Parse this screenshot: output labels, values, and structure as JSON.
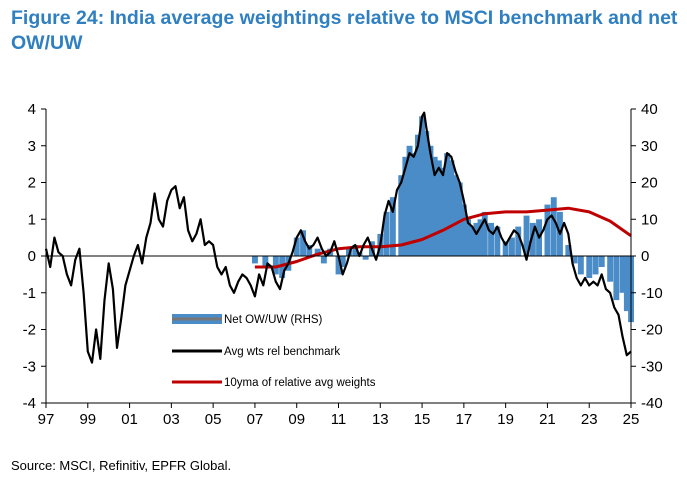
{
  "title": "Figure 24: India average weightings relative to MSCI benchmark and net OW/UW",
  "source": "Source: MSCI, Refinitiv, EPFR Global.",
  "chart_data": {
    "type": "line",
    "x_tick_labels": [
      "97",
      "99",
      "01",
      "03",
      "05",
      "07",
      "09",
      "11",
      "13",
      "15",
      "17",
      "19",
      "21",
      "23",
      "25"
    ],
    "y_left": {
      "range": [
        -4,
        4
      ],
      "ticks": [
        "4",
        "3",
        "2",
        "1",
        "0",
        "-1",
        "-2",
        "-3",
        "-4"
      ]
    },
    "y_right": {
      "range": [
        -40,
        40
      ],
      "ticks": [
        "40",
        "30",
        "20",
        "10",
        "0",
        "-10",
        "-20",
        "-30",
        "-40"
      ]
    },
    "x_range": [
      1997,
      2025
    ],
    "legend_position": "center-left",
    "legend": [
      {
        "name": "Net OW/UW (RHS)",
        "color": "#4a8cc7",
        "style": "bar"
      },
      {
        "name": "Avg wts rel benchmark",
        "color": "#000000",
        "style": "line"
      },
      {
        "name": "10yma of relative avg weights",
        "color": "#c00000",
        "style": "line"
      }
    ],
    "series": [
      {
        "name": "Net OW/UW (RHS)",
        "axis": "right",
        "type": "bar",
        "color": "#4a8cc7",
        "x": [
          2007.0,
          2007.5,
          2008.0,
          2008.3,
          2008.6,
          2009.0,
          2009.3,
          2009.6,
          2010.0,
          2010.3,
          2010.6,
          2011.0,
          2011.2,
          2011.5,
          2011.8,
          2012.0,
          2012.3,
          2012.6,
          2013.0,
          2013.3,
          2013.6,
          2014.0,
          2014.2,
          2014.4,
          2014.6,
          2014.8,
          2015.0,
          2015.2,
          2015.4,
          2015.6,
          2015.8,
          2016.0,
          2016.2,
          2016.4,
          2016.6,
          2016.8,
          2017.0,
          2017.2,
          2017.4,
          2017.6,
          2017.8,
          2018.0,
          2018.3,
          2018.6,
          2019.0,
          2019.3,
          2019.6,
          2020.0,
          2020.3,
          2020.6,
          2021.0,
          2021.3,
          2021.6,
          2022.0,
          2022.3,
          2022.6,
          2023.0,
          2023.3,
          2023.6,
          2024.0,
          2024.3,
          2024.6,
          2024.8,
          2025.0
        ],
        "values": [
          -2,
          -3,
          -5,
          -6,
          -4,
          5,
          7,
          3,
          2,
          -2,
          2,
          -5,
          -3,
          2,
          3,
          1,
          -1,
          4,
          6,
          12,
          16,
          22,
          27,
          30,
          28,
          33,
          38,
          34,
          30,
          27,
          26,
          24,
          28,
          26,
          22,
          20,
          14,
          10,
          8,
          9,
          10,
          12,
          9,
          8,
          4,
          5,
          8,
          11,
          9,
          10,
          14,
          16,
          12,
          3,
          -2,
          -5,
          -6,
          -5,
          -3,
          -7,
          -12,
          -10,
          -15,
          -18
        ]
      },
      {
        "name": "Avg wts rel benchmark",
        "axis": "left",
        "type": "line",
        "color": "#000000",
        "x": [
          1997.0,
          1997.2,
          1997.4,
          1997.6,
          1997.8,
          1998.0,
          1998.2,
          1998.4,
          1998.6,
          1998.8,
          1999.0,
          1999.2,
          1999.4,
          1999.6,
          1999.8,
          2000.0,
          2000.2,
          2000.4,
          2000.6,
          2000.8,
          2001.0,
          2001.2,
          2001.4,
          2001.6,
          2001.8,
          2002.0,
          2002.2,
          2002.4,
          2002.6,
          2002.8,
          2003.0,
          2003.2,
          2003.4,
          2003.6,
          2003.8,
          2004.0,
          2004.2,
          2004.4,
          2004.6,
          2004.8,
          2005.0,
          2005.2,
          2005.4,
          2005.6,
          2005.8,
          2006.0,
          2006.2,
          2006.4,
          2006.6,
          2006.8,
          2007.0,
          2007.2,
          2007.4,
          2007.6,
          2007.8,
          2008.0,
          2008.2,
          2008.4,
          2008.6,
          2008.8,
          2009.0,
          2009.2,
          2009.4,
          2009.6,
          2009.8,
          2010.0,
          2010.2,
          2010.4,
          2010.6,
          2010.8,
          2011.0,
          2011.2,
          2011.4,
          2011.6,
          2011.8,
          2012.0,
          2012.2,
          2012.4,
          2012.6,
          2012.8,
          2013.0,
          2013.2,
          2013.4,
          2013.6,
          2013.8,
          2014.0,
          2014.2,
          2014.4,
          2014.6,
          2014.8,
          2015.0,
          2015.1,
          2015.2,
          2015.4,
          2015.6,
          2015.8,
          2016.0,
          2016.2,
          2016.4,
          2016.6,
          2016.8,
          2017.0,
          2017.2,
          2017.4,
          2017.6,
          2017.8,
          2018.0,
          2018.2,
          2018.4,
          2018.6,
          2018.8,
          2019.0,
          2019.2,
          2019.4,
          2019.6,
          2019.8,
          2020.0,
          2020.2,
          2020.4,
          2020.6,
          2020.8,
          2021.0,
          2021.2,
          2021.4,
          2021.6,
          2021.8,
          2022.0,
          2022.2,
          2022.4,
          2022.6,
          2022.8,
          2023.0,
          2023.2,
          2023.4,
          2023.6,
          2023.8,
          2024.0,
          2024.2,
          2024.4,
          2024.6,
          2024.8,
          2025.0
        ],
        "values": [
          0.2,
          -0.3,
          0.5,
          0.1,
          0.0,
          -0.5,
          -0.8,
          -0.1,
          0.2,
          -1.0,
          -2.6,
          -2.9,
          -2.0,
          -2.8,
          -1.2,
          -0.2,
          -0.9,
          -2.5,
          -1.7,
          -0.8,
          -0.4,
          0.0,
          0.3,
          -0.2,
          0.5,
          0.9,
          1.7,
          1.0,
          0.8,
          1.5,
          1.8,
          1.9,
          1.3,
          1.6,
          0.7,
          0.4,
          0.6,
          1.0,
          0.3,
          0.4,
          0.3,
          -0.3,
          -0.5,
          -0.3,
          -0.8,
          -1.0,
          -0.7,
          -0.5,
          -0.6,
          -0.8,
          -1.1,
          -0.5,
          -0.8,
          -0.2,
          -0.3,
          -0.7,
          -0.9,
          -0.4,
          -0.2,
          0.1,
          0.5,
          0.7,
          0.4,
          0.2,
          0.3,
          0.5,
          0.2,
          0.0,
          0.1,
          0.4,
          0.0,
          -0.5,
          -0.2,
          0.2,
          0.3,
          0.0,
          0.3,
          0.5,
          0.2,
          -0.1,
          0.3,
          1.1,
          1.5,
          1.2,
          1.8,
          2.0,
          2.4,
          2.8,
          2.7,
          3.0,
          3.8,
          3.9,
          3.5,
          2.8,
          2.2,
          2.4,
          2.2,
          2.8,
          2.7,
          2.3,
          2.0,
          1.5,
          0.9,
          0.8,
          0.6,
          0.8,
          1.0,
          0.7,
          0.6,
          0.8,
          0.5,
          0.3,
          0.5,
          0.7,
          0.6,
          0.3,
          -0.1,
          0.4,
          0.8,
          0.5,
          0.7,
          1.0,
          1.1,
          0.9,
          0.6,
          0.9,
          0.6,
          -0.2,
          -0.6,
          -0.8,
          -0.6,
          -0.8,
          -0.7,
          -0.8,
          -0.5,
          -0.9,
          -1.0,
          -1.4,
          -1.6,
          -2.2,
          -2.7,
          -2.6
        ]
      },
      {
        "name": "10yma of relative avg weights",
        "axis": "left",
        "type": "line",
        "color": "#c00000",
        "x": [
          2007.0,
          2008.0,
          2009.0,
          2010.0,
          2011.0,
          2012.0,
          2013.0,
          2014.0,
          2015.0,
          2016.0,
          2017.0,
          2018.0,
          2019.0,
          2020.0,
          2021.0,
          2022.0,
          2023.0,
          2024.0,
          2025.0
        ],
        "values": [
          -0.3,
          -0.3,
          -0.15,
          0.05,
          0.2,
          0.25,
          0.25,
          0.3,
          0.45,
          0.7,
          1.0,
          1.15,
          1.2,
          1.2,
          1.25,
          1.3,
          1.2,
          0.95,
          0.55
        ]
      }
    ]
  }
}
